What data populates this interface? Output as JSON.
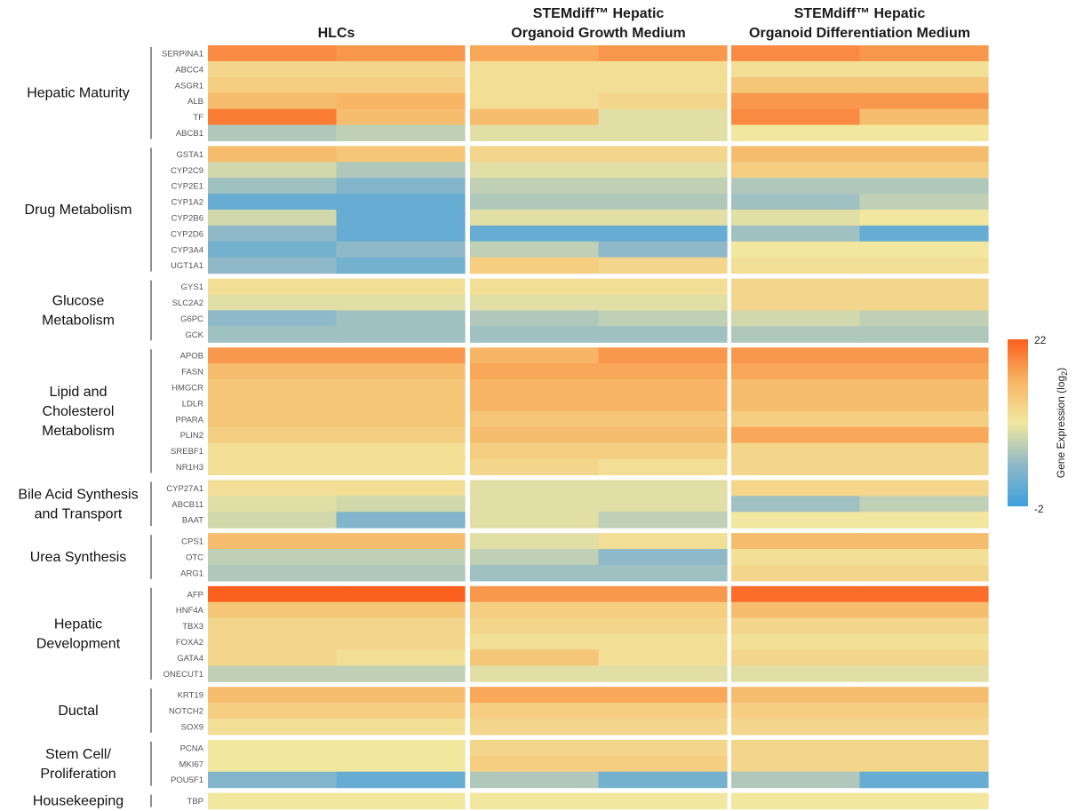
{
  "chart_data": {
    "type": "heatmap",
    "colorbar": {
      "label": "Gene Expression (log",
      "label_subscript": "2",
      "label_close": ")",
      "min_label": "-2",
      "max_label": "22",
      "min": -2,
      "max": 22
    },
    "conditions": [
      {
        "title_lines": [
          "HLCs"
        ]
      },
      {
        "title_lines": [
          "STEMdiff™ Hepatic",
          "Organoid Growth Medium"
        ]
      },
      {
        "title_lines": [
          "STEMdiff™ Hepatic",
          "Organoid Differentiation Medium"
        ]
      }
    ],
    "groups": [
      {
        "label_lines": [
          "Hepatic Maturity"
        ],
        "genes": [
          {
            "gene": "SERPINA1",
            "values": [
              [
                19,
                18
              ],
              [
                17,
                18
              ],
              [
                19,
                18
              ]
            ]
          },
          {
            "gene": "ABCC4",
            "values": [
              [
                12,
                12
              ],
              [
                11,
                11
              ],
              [
                11,
                11
              ]
            ]
          },
          {
            "gene": "ASGR1",
            "values": [
              [
                13,
                13
              ],
              [
                11,
                11
              ],
              [
                14,
                14
              ]
            ]
          },
          {
            "gene": "ALB",
            "values": [
              [
                15,
                16
              ],
              [
                11,
                12
              ],
              [
                18,
                18
              ]
            ]
          },
          {
            "gene": "TF",
            "values": [
              [
                20,
                15
              ],
              [
                15,
                9
              ],
              [
                19,
                15
              ]
            ]
          },
          {
            "gene": "ABCB1",
            "values": [
              [
                6,
                7
              ],
              [
                9,
                9
              ],
              [
                10,
                10
              ]
            ]
          }
        ]
      },
      {
        "label_lines": [
          "Drug Metabolism"
        ],
        "genes": [
          {
            "gene": "GSTA1",
            "values": [
              [
                15,
                14
              ],
              [
                12,
                12
              ],
              [
                15,
                15
              ]
            ]
          },
          {
            "gene": "CYP2C9",
            "values": [
              [
                8,
                6
              ],
              [
                9,
                9
              ],
              [
                13,
                13
              ]
            ]
          },
          {
            "gene": "CYP2E1",
            "values": [
              [
                5,
                3
              ],
              [
                7,
                7
              ],
              [
                6,
                6
              ]
            ]
          },
          {
            "gene": "CYP1A2",
            "values": [
              [
                1,
                1
              ],
              [
                6,
                6
              ],
              [
                5,
                7
              ]
            ]
          },
          {
            "gene": "CYP2B6",
            "values": [
              [
                8,
                1
              ],
              [
                9,
                9
              ],
              [
                9,
                10
              ]
            ]
          },
          {
            "gene": "CYP2D6",
            "values": [
              [
                4,
                1
              ],
              [
                1,
                1
              ],
              [
                5,
                1
              ]
            ]
          },
          {
            "gene": "CYP3A4",
            "values": [
              [
                2,
                4
              ],
              [
                7,
                4
              ],
              [
                10,
                10
              ]
            ]
          },
          {
            "gene": "UGT1A1",
            "values": [
              [
                4,
                2
              ],
              [
                13,
                12
              ],
              [
                11,
                11
              ]
            ]
          }
        ]
      },
      {
        "label_lines": [
          "Glucose",
          "Metabolism"
        ],
        "genes": [
          {
            "gene": "GYS1",
            "values": [
              [
                11,
                11
              ],
              [
                11,
                11
              ],
              [
                12,
                12
              ]
            ]
          },
          {
            "gene": "SLC2A2",
            "values": [
              [
                9,
                9
              ],
              [
                9,
                9
              ],
              [
                12,
                12
              ]
            ]
          },
          {
            "gene": "G6PC",
            "values": [
              [
                4,
                5
              ],
              [
                6,
                7
              ],
              [
                8,
                7
              ]
            ]
          },
          {
            "gene": "GCK",
            "values": [
              [
                5,
                5
              ],
              [
                5,
                5
              ],
              [
                6,
                6
              ]
            ]
          }
        ]
      },
      {
        "label_lines": [
          "Lipid and",
          "Cholesterol",
          "Metabolism"
        ],
        "genes": [
          {
            "gene": "APOB",
            "values": [
              [
                18,
                18
              ],
              [
                16,
                18
              ],
              [
                18,
                18
              ]
            ]
          },
          {
            "gene": "FASN",
            "values": [
              [
                15,
                15
              ],
              [
                17,
                17
              ],
              [
                17,
                17
              ]
            ]
          },
          {
            "gene": "HMGCR",
            "values": [
              [
                14,
                14
              ],
              [
                16,
                16
              ],
              [
                15,
                15
              ]
            ]
          },
          {
            "gene": "LDLR",
            "values": [
              [
                14,
                14
              ],
              [
                16,
                16
              ],
              [
                15,
                15
              ]
            ]
          },
          {
            "gene": "PPARA",
            "values": [
              [
                14,
                14
              ],
              [
                14,
                14
              ],
              [
                13,
                13
              ]
            ]
          },
          {
            "gene": "PLIN2",
            "values": [
              [
                13,
                13
              ],
              [
                15,
                15
              ],
              [
                17,
                17
              ]
            ]
          },
          {
            "gene": "SREBF1",
            "values": [
              [
                11,
                11
              ],
              [
                13,
                13
              ],
              [
                12,
                12
              ]
            ]
          },
          {
            "gene": "NR1H3",
            "values": [
              [
                11,
                11
              ],
              [
                12,
                11
              ],
              [
                12,
                12
              ]
            ]
          }
        ]
      },
      {
        "label_lines": [
          "Bile Acid Synthesis",
          "and Transport"
        ],
        "genes": [
          {
            "gene": "CYP27A1",
            "values": [
              [
                11,
                11
              ],
              [
                9,
                9
              ],
              [
                12,
                12
              ]
            ]
          },
          {
            "gene": "ABCB11",
            "values": [
              [
                9,
                8
              ],
              [
                9,
                9
              ],
              [
                5,
                7
              ]
            ]
          },
          {
            "gene": "BAAT",
            "values": [
              [
                8,
                3
              ],
              [
                9,
                7
              ],
              [
                10,
                10
              ]
            ]
          }
        ]
      },
      {
        "label_lines": [
          "Urea Synthesis"
        ],
        "genes": [
          {
            "gene": "CPS1",
            "values": [
              [
                15,
                15
              ],
              [
                9,
                11
              ],
              [
                15,
                15
              ]
            ]
          },
          {
            "gene": "OTC",
            "values": [
              [
                7,
                7
              ],
              [
                7,
                4
              ],
              [
                11,
                11
              ]
            ]
          },
          {
            "gene": "ARG1",
            "values": [
              [
                6,
                6
              ],
              [
                5,
                5
              ],
              [
                12,
                12
              ]
            ]
          }
        ]
      },
      {
        "label_lines": [
          "Hepatic",
          "Development"
        ],
        "genes": [
          {
            "gene": "AFP",
            "values": [
              [
                22,
                22
              ],
              [
                18,
                18
              ],
              [
                21,
                21
              ]
            ]
          },
          {
            "gene": "HNF4A",
            "values": [
              [
                14,
                14
              ],
              [
                13,
                13
              ],
              [
                15,
                15
              ]
            ]
          },
          {
            "gene": "TBX3",
            "values": [
              [
                12,
                12
              ],
              [
                12,
                12
              ],
              [
                12,
                12
              ]
            ]
          },
          {
            "gene": "FOXA2",
            "values": [
              [
                12,
                12
              ],
              [
                11,
                11
              ],
              [
                11,
                11
              ]
            ]
          },
          {
            "gene": "GATA4",
            "values": [
              [
                12,
                11
              ],
              [
                14,
                11
              ],
              [
                12,
                12
              ]
            ]
          },
          {
            "gene": "ONECUT1",
            "values": [
              [
                7,
                7
              ],
              [
                9,
                9
              ],
              [
                9,
                9
              ]
            ]
          }
        ]
      },
      {
        "label_lines": [
          "Ductal"
        ],
        "genes": [
          {
            "gene": "KRT19",
            "values": [
              [
                15,
                15
              ],
              [
                17,
                17
              ],
              [
                15,
                15
              ]
            ]
          },
          {
            "gene": "NOTCH2",
            "values": [
              [
                13,
                13
              ],
              [
                13,
                13
              ],
              [
                13,
                13
              ]
            ]
          },
          {
            "gene": "SOX9",
            "values": [
              [
                11,
                11
              ],
              [
                12,
                12
              ],
              [
                12,
                12
              ]
            ]
          }
        ]
      },
      {
        "label_lines": [
          "Stem Cell/",
          "Proliferation"
        ],
        "genes": [
          {
            "gene": "PCNA",
            "values": [
              [
                10,
                10
              ],
              [
                12,
                12
              ],
              [
                12,
                12
              ]
            ]
          },
          {
            "gene": "MKI67",
            "values": [
              [
                10,
                10
              ],
              [
                13,
                13
              ],
              [
                12,
                12
              ]
            ]
          },
          {
            "gene": "POU5F1",
            "values": [
              [
                3,
                1
              ],
              [
                6,
                2
              ],
              [
                6,
                1
              ]
            ]
          }
        ]
      },
      {
        "label_lines": [
          "Housekeeping"
        ],
        "genes": [
          {
            "gene": "TBP",
            "values": [
              [
                10,
                10
              ],
              [
                10,
                10
              ],
              [
                10,
                10
              ]
            ]
          }
        ]
      }
    ]
  }
}
